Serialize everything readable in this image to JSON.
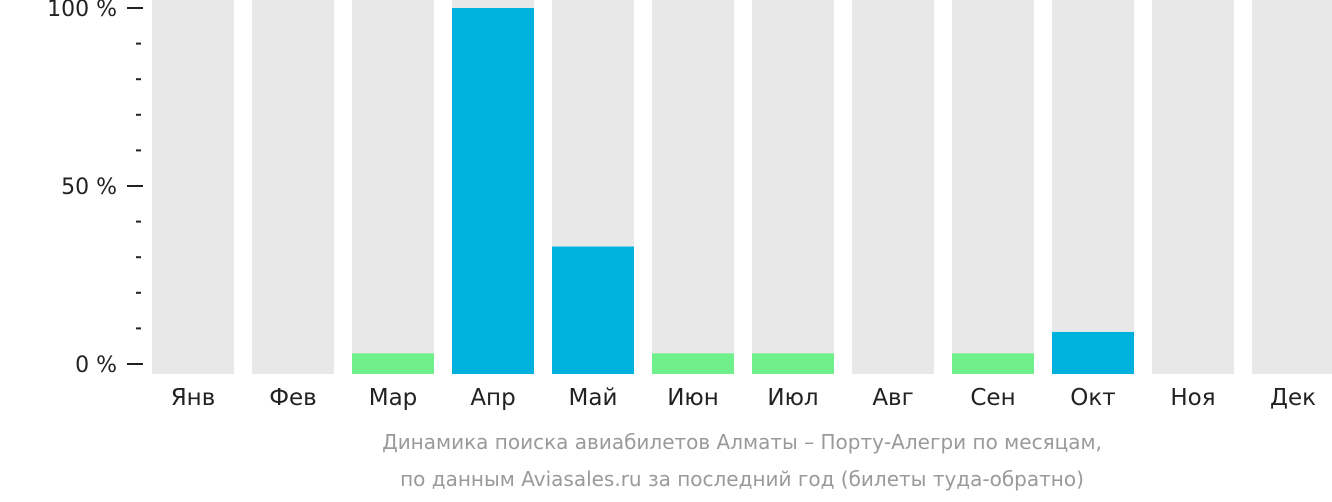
{
  "chart_data": {
    "type": "bar",
    "categories": [
      "Янв",
      "Фев",
      "Мар",
      "Апр",
      "Май",
      "Июн",
      "Июл",
      "Авг",
      "Сен",
      "Окт",
      "Ноя",
      "Дек"
    ],
    "values": [
      0,
      0,
      3,
      100,
      33,
      3,
      3,
      0,
      3,
      9,
      0,
      0
    ],
    "ylim": [
      0,
      100
    ],
    "yticks": [
      {
        "value": 0,
        "label": "0 %"
      },
      {
        "value": 50,
        "label": "50 %"
      },
      {
        "value": 100,
        "label": "100 %"
      }
    ],
    "minor_tick_step": 10,
    "title": "",
    "xlabel": "",
    "ylabel": "",
    "grid": false,
    "legend": "none",
    "colors": {
      "background_bar": "#e8e8e8",
      "low_bar": "#6ff08a",
      "high_bar": "#00b1dd",
      "axis": "#222222"
    },
    "low_threshold": 5
  },
  "caption": {
    "line1": "Динамика поиска авиабилетов Алматы – Порту-Алегри по месяцам,",
    "line2": "по данным Aviasales.ru за последний год (билеты туда-обратно)"
  }
}
